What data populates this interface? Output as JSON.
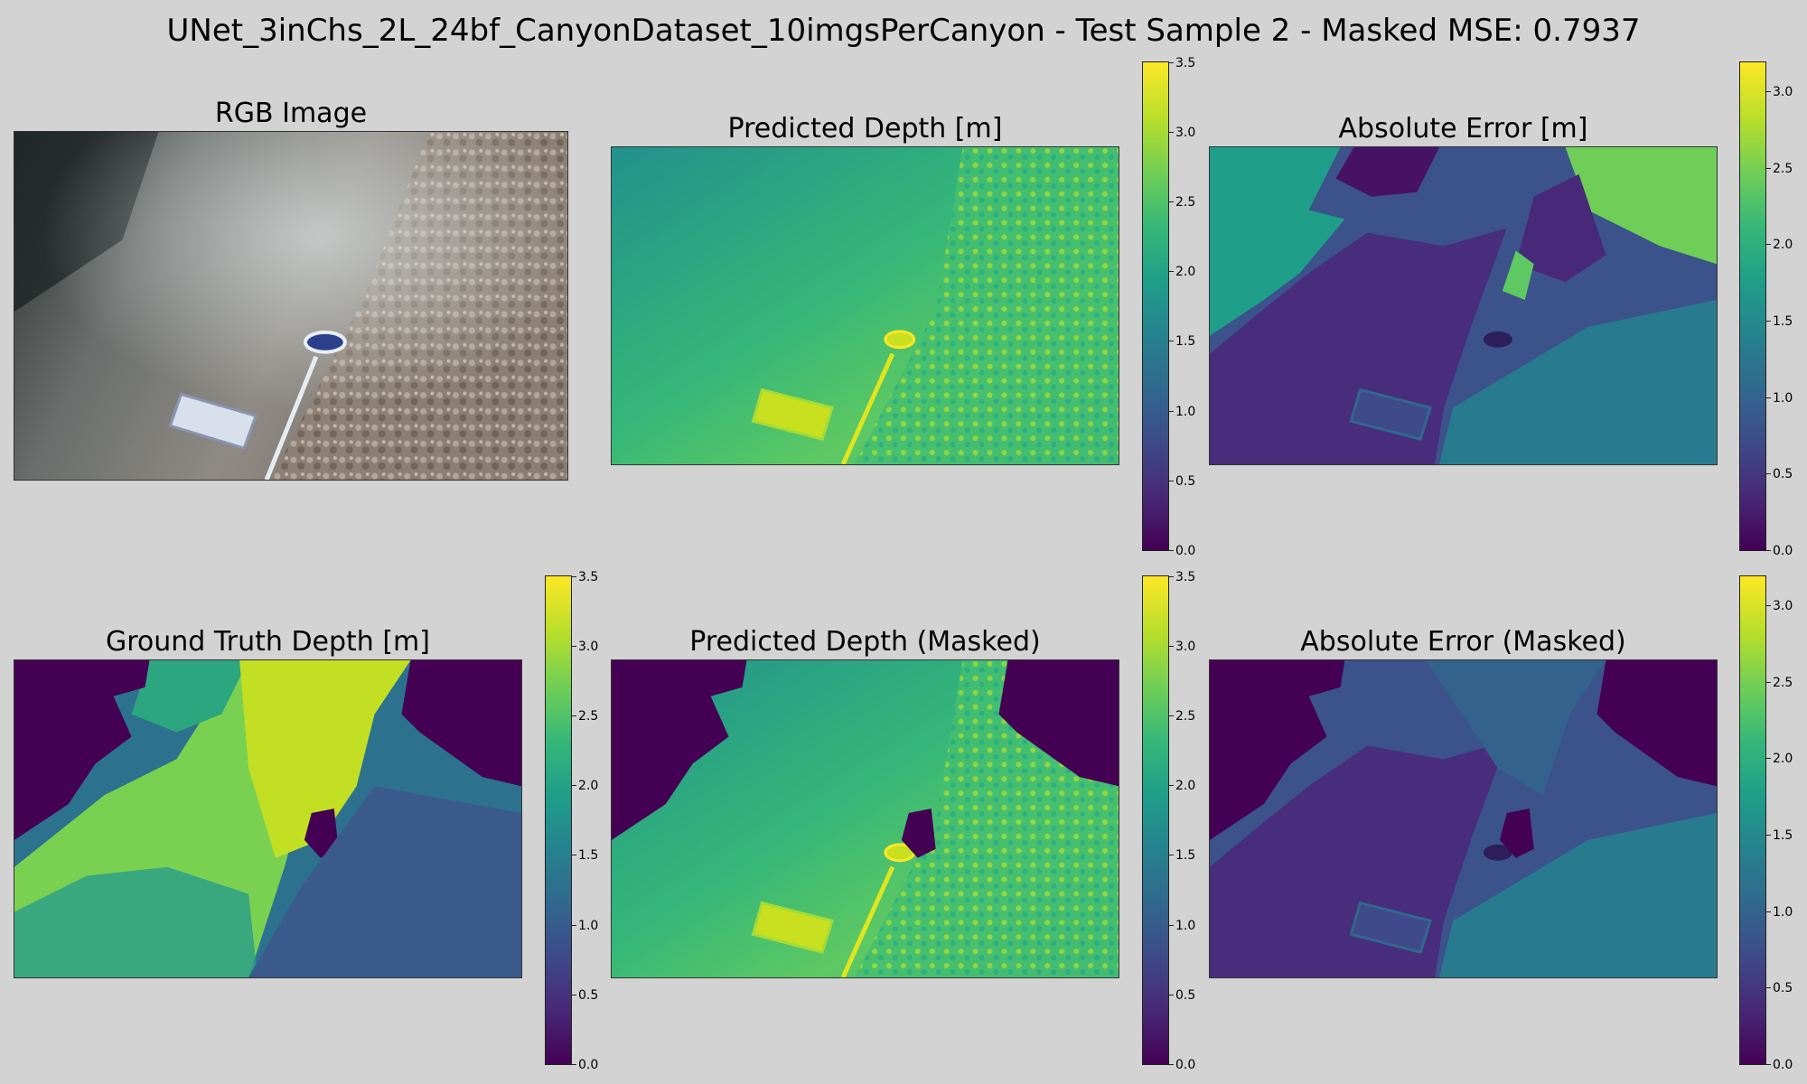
{
  "figure": {
    "title": "UNet_3inChs_2L_24bf_CanyonDataset_10imgsPerCanyon - Test Sample 2 - Masked MSE: 0.7937"
  },
  "panels": {
    "rgb": {
      "title": "RGB Image"
    },
    "pred": {
      "title": "Predicted Depth [m]"
    },
    "err": {
      "title": "Absolute Error [m]"
    },
    "gt": {
      "title": "Ground Truth Depth [m]"
    },
    "pred_masked": {
      "title": "Predicted Depth (Masked)"
    },
    "err_masked": {
      "title": "Absolute Error (Masked)"
    }
  },
  "colorbars": {
    "colormap": "viridis",
    "depth_ticks": [
      "0.0",
      "0.5",
      "1.0",
      "1.5",
      "2.0",
      "2.5",
      "3.0",
      "3.5"
    ],
    "depth_range": [
      0,
      3.5
    ],
    "error_ticks": [
      "0.0",
      "0.5",
      "1.0",
      "1.5",
      "2.0",
      "2.5",
      "3.0"
    ],
    "error_range": [
      0,
      3.2
    ]
  }
}
